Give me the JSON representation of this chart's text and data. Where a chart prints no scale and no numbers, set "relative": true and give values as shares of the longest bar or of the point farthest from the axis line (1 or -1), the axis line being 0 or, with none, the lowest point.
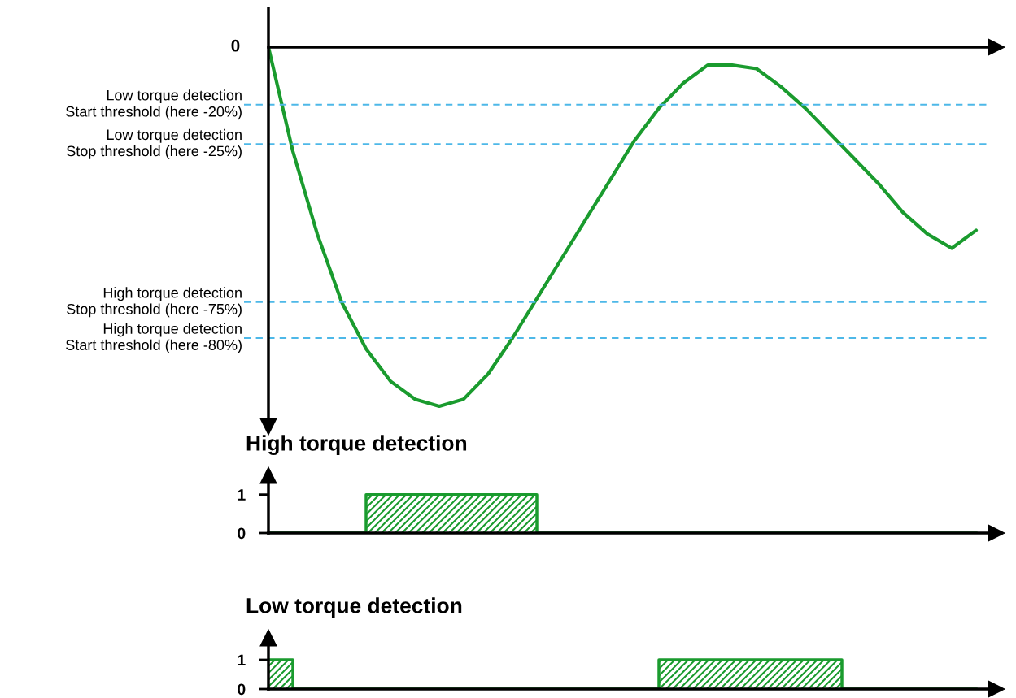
{
  "chart_data": [
    {
      "type": "line",
      "relative": true,
      "annotations": [
        "0"
      ],
      "categories": [
        null,
        null,
        null,
        null,
        null,
        null,
        null,
        null,
        null,
        null,
        null,
        null,
        null,
        null,
        null,
        null,
        null,
        null,
        null,
        null,
        null,
        null,
        null,
        null,
        null,
        null,
        null,
        null,
        null,
        null
      ],
      "series": [
        {
          "color": "#1a9b2e",
          "values": [
            0,
            -0.29,
            -0.52,
            -0.71,
            -0.84,
            -0.93,
            -0.98,
            -1,
            -0.98,
            -0.91,
            -0.81,
            -0.7,
            -0.59,
            -0.48,
            -0.37,
            -0.26,
            -0.17,
            -0.1,
            -0.05,
            -0.05,
            -0.06,
            -0.11,
            -0.17,
            -0.24,
            -0.31,
            -0.38,
            -0.46,
            -0.52,
            -0.56,
            -0.51
          ]
        }
      ],
      "ref_lines": [
        {
          "axis": "y",
          "value": -0.16,
          "label": "Low torque detection\nStart threshold (here -20%)",
          "color": "#4db8e8",
          "line_style": "dashed"
        },
        {
          "axis": "y",
          "value": -0.27,
          "label": "Low torque detection\nStop threshold (here -25%)",
          "color": "#4db8e8",
          "line_style": "dashed"
        },
        {
          "axis": "y",
          "value": -0.71,
          "label": "High torque detection\nStop threshold (here -75%)",
          "color": "#4db8e8",
          "line_style": "dashed"
        },
        {
          "axis": "y",
          "value": -0.81,
          "label": "High torque detection\nStart threshold (here -80%)",
          "color": "#4db8e8",
          "line_style": "dashed"
        }
      ]
    },
    {
      "type": "area",
      "title": "High torque detection",
      "ylim": [
        0,
        1.5
      ],
      "yticks": [
        0,
        1
      ],
      "color": "#1a9b2e",
      "categories": [
        null,
        null,
        null,
        null,
        null,
        null,
        null,
        null,
        null,
        null,
        null,
        null,
        null,
        null,
        null,
        null,
        null,
        null,
        null,
        null,
        null,
        null,
        null,
        null,
        null,
        null,
        null,
        null,
        null,
        null,
        null,
        null,
        null,
        null,
        null,
        null,
        null,
        null,
        null,
        null,
        null,
        null,
        null,
        null,
        null,
        null,
        null,
        null,
        null,
        null,
        null,
        null,
        null,
        null,
        null,
        null,
        null,
        null,
        null
      ],
      "values": [
        0,
        0,
        0,
        0,
        0,
        0,
        0,
        0,
        1,
        1,
        1,
        1,
        1,
        1,
        1,
        1,
        1,
        1,
        1,
        1,
        1,
        1,
        0,
        0,
        0,
        0,
        0,
        0,
        0,
        0,
        0,
        0,
        0,
        0,
        0,
        0,
        0,
        0,
        0,
        0,
        0,
        0,
        0,
        0,
        0,
        0,
        0,
        0,
        0,
        0,
        0,
        0,
        0,
        0,
        0,
        0,
        0,
        0,
        0
      ]
    },
    {
      "type": "area",
      "title": "Low torque detection",
      "ylim": [
        0,
        1.75
      ],
      "yticks": [
        0,
        1
      ],
      "color": "#1a9b2e",
      "categories": [
        null,
        null,
        null,
        null,
        null,
        null,
        null,
        null,
        null,
        null,
        null,
        null,
        null,
        null,
        null,
        null,
        null,
        null,
        null,
        null,
        null,
        null,
        null,
        null,
        null,
        null,
        null,
        null,
        null,
        null,
        null,
        null,
        null,
        null,
        null,
        null,
        null,
        null,
        null,
        null,
        null,
        null,
        null,
        null,
        null,
        null,
        null,
        null,
        null,
        null,
        null,
        null,
        null,
        null,
        null,
        null,
        null,
        null,
        null
      ],
      "values": [
        1,
        1,
        0,
        0,
        0,
        0,
        0,
        0,
        0,
        0,
        0,
        0,
        0,
        0,
        0,
        0,
        0,
        0,
        0,
        0,
        0,
        0,
        0,
        0,
        0,
        0,
        0,
        0,
        0,
        0,
        0,
        0,
        1,
        1,
        1,
        1,
        1,
        1,
        1,
        1,
        1,
        1,
        1,
        1,
        1,
        1,
        1,
        0,
        0,
        0,
        0,
        0,
        0,
        0,
        0,
        0,
        0,
        0,
        0
      ]
    }
  ]
}
